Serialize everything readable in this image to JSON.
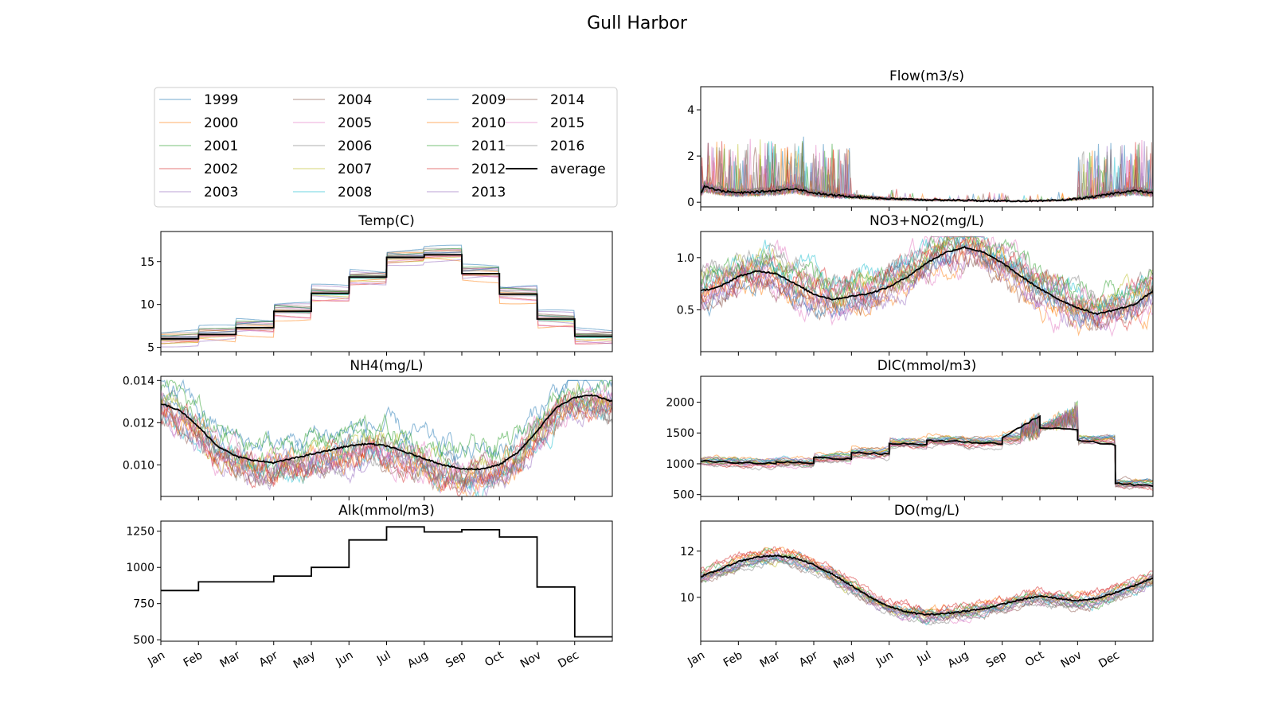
{
  "suptitle": "Gull Harbor",
  "legend": {
    "entries": [
      {
        "label": "1999",
        "color": "#1f77b4"
      },
      {
        "label": "2000",
        "color": "#ff7f0e"
      },
      {
        "label": "2001",
        "color": "#2ca02c"
      },
      {
        "label": "2002",
        "color": "#d62728"
      },
      {
        "label": "2003",
        "color": "#9467bd"
      },
      {
        "label": "2004",
        "color": "#8c564b"
      },
      {
        "label": "2005",
        "color": "#e377c2"
      },
      {
        "label": "2006",
        "color": "#7f7f7f"
      },
      {
        "label": "2007",
        "color": "#bcbd22"
      },
      {
        "label": "2008",
        "color": "#17becf"
      },
      {
        "label": "2009",
        "color": "#1f77b4"
      },
      {
        "label": "2010",
        "color": "#ff7f0e"
      },
      {
        "label": "2011",
        "color": "#2ca02c"
      },
      {
        "label": "2012",
        "color": "#d62728"
      },
      {
        "label": "2013",
        "color": "#9467bd"
      },
      {
        "label": "2014",
        "color": "#8c564b"
      },
      {
        "label": "2015",
        "color": "#e377c2"
      },
      {
        "label": "2016",
        "color": "#7f7f7f"
      },
      {
        "label": "average",
        "color": "#000000"
      }
    ]
  },
  "chart_data": [
    {
      "type": "line",
      "title": "Flow(m3/s)",
      "x_unit": "month",
      "xlim": [
        0,
        12
      ],
      "ylim": [
        -0.2,
        5.0
      ],
      "yticks": [
        0,
        2,
        4
      ],
      "grid": false,
      "month_ticks": [
        "Jan",
        "Feb",
        "Mar",
        "Apr",
        "May",
        "Jun",
        "Jul",
        "Aug",
        "Sep",
        "Oct",
        "Nov",
        "Dec"
      ],
      "show_month_labels": false,
      "average": {
        "x": [
          0,
          0.1,
          0.5,
          1,
          1.5,
          2,
          2.5,
          3,
          3.5,
          4,
          5,
          6,
          7,
          8,
          9,
          9.5,
          10,
          10.5,
          11,
          11.5,
          12
        ],
        "y": [
          0.4,
          0.7,
          0.5,
          0.4,
          0.45,
          0.5,
          0.6,
          0.4,
          0.3,
          0.25,
          0.15,
          0.1,
          0.08,
          0.05,
          0.05,
          0.08,
          0.15,
          0.25,
          0.4,
          0.5,
          0.4
        ]
      },
      "year_spread": 0.5,
      "style": "spiky"
    },
    {
      "type": "line",
      "title": "Temp(C)",
      "x_unit": "month",
      "xlim": [
        0,
        12
      ],
      "ylim": [
        4.5,
        18.5
      ],
      "yticks": [
        5,
        10,
        15
      ],
      "grid": false,
      "month_ticks": [
        "Jan",
        "Feb",
        "Mar",
        "Apr",
        "May",
        "Jun",
        "Jul",
        "Aug",
        "Sep",
        "Oct",
        "Nov",
        "Dec"
      ],
      "show_month_labels": false,
      "average": {
        "x": [
          0,
          1,
          2,
          3,
          4,
          5,
          6,
          7,
          8,
          9,
          10,
          11
        ],
        "y": [
          6.0,
          6.5,
          7.3,
          9.2,
          11.3,
          13.2,
          15.5,
          15.8,
          13.6,
          11.2,
          8.3,
          6.3
        ]
      },
      "year_spread": 1.2,
      "style": "step"
    },
    {
      "type": "line",
      "title": "NH4(mg/L)",
      "x_unit": "month",
      "xlim": [
        0,
        12
      ],
      "ylim": [
        0.0085,
        0.0142
      ],
      "yticks": [
        0.01,
        0.012,
        0.014
      ],
      "ytick_labels": [
        "0.010",
        "0.012",
        "0.014"
      ],
      "grid": false,
      "month_ticks": [
        "Jan",
        "Feb",
        "Mar",
        "Apr",
        "May",
        "Jun",
        "Jul",
        "Aug",
        "Sep",
        "Oct",
        "Nov",
        "Dec"
      ],
      "show_month_labels": false,
      "average": {
        "x": [
          0,
          0.5,
          1,
          1.5,
          2,
          2.5,
          3,
          3.5,
          4,
          4.5,
          5,
          5.5,
          6,
          6.5,
          7,
          7.5,
          8,
          8.5,
          9,
          9.5,
          10,
          10.5,
          11,
          11.5,
          12
        ],
        "y": [
          0.0129,
          0.0126,
          0.0118,
          0.0109,
          0.0104,
          0.0102,
          0.0101,
          0.0103,
          0.0105,
          0.0107,
          0.0109,
          0.011,
          0.0109,
          0.0106,
          0.0103,
          0.01,
          0.0098,
          0.0098,
          0.01,
          0.0106,
          0.0116,
          0.0127,
          0.0132,
          0.0133,
          0.013
        ]
      },
      "year_spread": 0.0008,
      "style": "noisy",
      "clip": [
        0.0085,
        0.014
      ]
    },
    {
      "type": "line",
      "title": "Alk(mmol/m3)",
      "x_unit": "month",
      "xlim": [
        0,
        12
      ],
      "ylim": [
        490,
        1320
      ],
      "yticks": [
        500,
        750,
        1000,
        1250
      ],
      "grid": false,
      "month_ticks": [
        "Jan",
        "Feb",
        "Mar",
        "Apr",
        "May",
        "Jun",
        "Jul",
        "Aug",
        "Sep",
        "Oct",
        "Nov",
        "Dec"
      ],
      "show_month_labels": true,
      "average": {
        "x": [
          0,
          1,
          2,
          3,
          4,
          5,
          6,
          7,
          8,
          9,
          10,
          11
        ],
        "y": [
          840,
          900,
          900,
          940,
          1000,
          1190,
          1280,
          1245,
          1260,
          1210,
          865,
          520
        ]
      },
      "year_spread": 0,
      "style": "step"
    },
    {
      "type": "line",
      "title": "NO3+NO2(mg/L)",
      "x_unit": "month",
      "xlim": [
        0,
        12
      ],
      "ylim": [
        0.1,
        1.25
      ],
      "yticks": [
        0.5,
        1.0
      ],
      "ytick_labels": [
        "0.5",
        "1.0"
      ],
      "grid": false,
      "month_ticks": [
        "Jan",
        "Feb",
        "Mar",
        "Apr",
        "May",
        "Jun",
        "Jul",
        "Aug",
        "Sep",
        "Oct",
        "Nov",
        "Dec"
      ],
      "show_month_labels": false,
      "average": {
        "x": [
          0,
          0.5,
          1,
          1.5,
          2,
          2.5,
          3,
          3.5,
          4,
          4.5,
          5,
          5.5,
          6,
          6.5,
          7,
          7.5,
          8,
          8.5,
          9,
          9.5,
          10,
          10.5,
          11,
          11.5,
          12
        ],
        "y": [
          0.68,
          0.72,
          0.82,
          0.87,
          0.85,
          0.75,
          0.65,
          0.6,
          0.63,
          0.66,
          0.72,
          0.82,
          0.95,
          1.05,
          1.1,
          1.05,
          0.95,
          0.82,
          0.7,
          0.6,
          0.52,
          0.46,
          0.5,
          0.55,
          0.68
        ]
      },
      "year_spread": 0.16,
      "style": "noisy",
      "clip": [
        0.12,
        1.2
      ]
    },
    {
      "type": "line",
      "title": "DIC(mmol/m3)",
      "x_unit": "month",
      "xlim": [
        0,
        12
      ],
      "ylim": [
        470,
        2420
      ],
      "yticks": [
        500,
        1000,
        1500,
        2000
      ],
      "grid": false,
      "month_ticks": [
        "Jan",
        "Feb",
        "Mar",
        "Apr",
        "May",
        "Jun",
        "Jul",
        "Aug",
        "Sep",
        "Oct",
        "Nov",
        "Dec"
      ],
      "show_month_labels": false,
      "average": {
        "x": [
          0,
          1,
          2,
          3,
          4,
          5,
          6,
          7,
          8,
          9,
          10,
          11
        ],
        "y": [
          1040,
          1020,
          1030,
          1100,
          1180,
          1330,
          1380,
          1350,
          1420,
          1580,
          1390,
          680
        ]
      },
      "year_spread": 40,
      "style": "dic"
    },
    {
      "type": "line",
      "title": "DO(mg/L)",
      "x_unit": "month",
      "xlim": [
        0,
        12
      ],
      "ylim": [
        8.1,
        13.3
      ],
      "yticks": [
        10,
        12
      ],
      "grid": false,
      "month_ticks": [
        "Jan",
        "Feb",
        "Mar",
        "Apr",
        "May",
        "Jun",
        "Jul",
        "Aug",
        "Sep",
        "Oct",
        "Nov",
        "Dec"
      ],
      "show_month_labels": true,
      "average": {
        "x": [
          0,
          0.5,
          1,
          1.5,
          2,
          2.5,
          3,
          3.5,
          4,
          4.5,
          5,
          5.5,
          6,
          6.5,
          7,
          7.5,
          8,
          8.5,
          9,
          9.5,
          10,
          10.5,
          11,
          11.5,
          12
        ],
        "y": [
          10.9,
          11.2,
          11.55,
          11.75,
          11.8,
          11.7,
          11.4,
          11.0,
          10.5,
          10.0,
          9.6,
          9.35,
          9.25,
          9.3,
          9.4,
          9.5,
          9.7,
          9.9,
          10.05,
          9.95,
          9.85,
          9.95,
          10.2,
          10.5,
          10.85
        ]
      },
      "year_spread": 0.25,
      "style": "noisy",
      "clip": [
        8.3,
        13.1
      ]
    }
  ]
}
